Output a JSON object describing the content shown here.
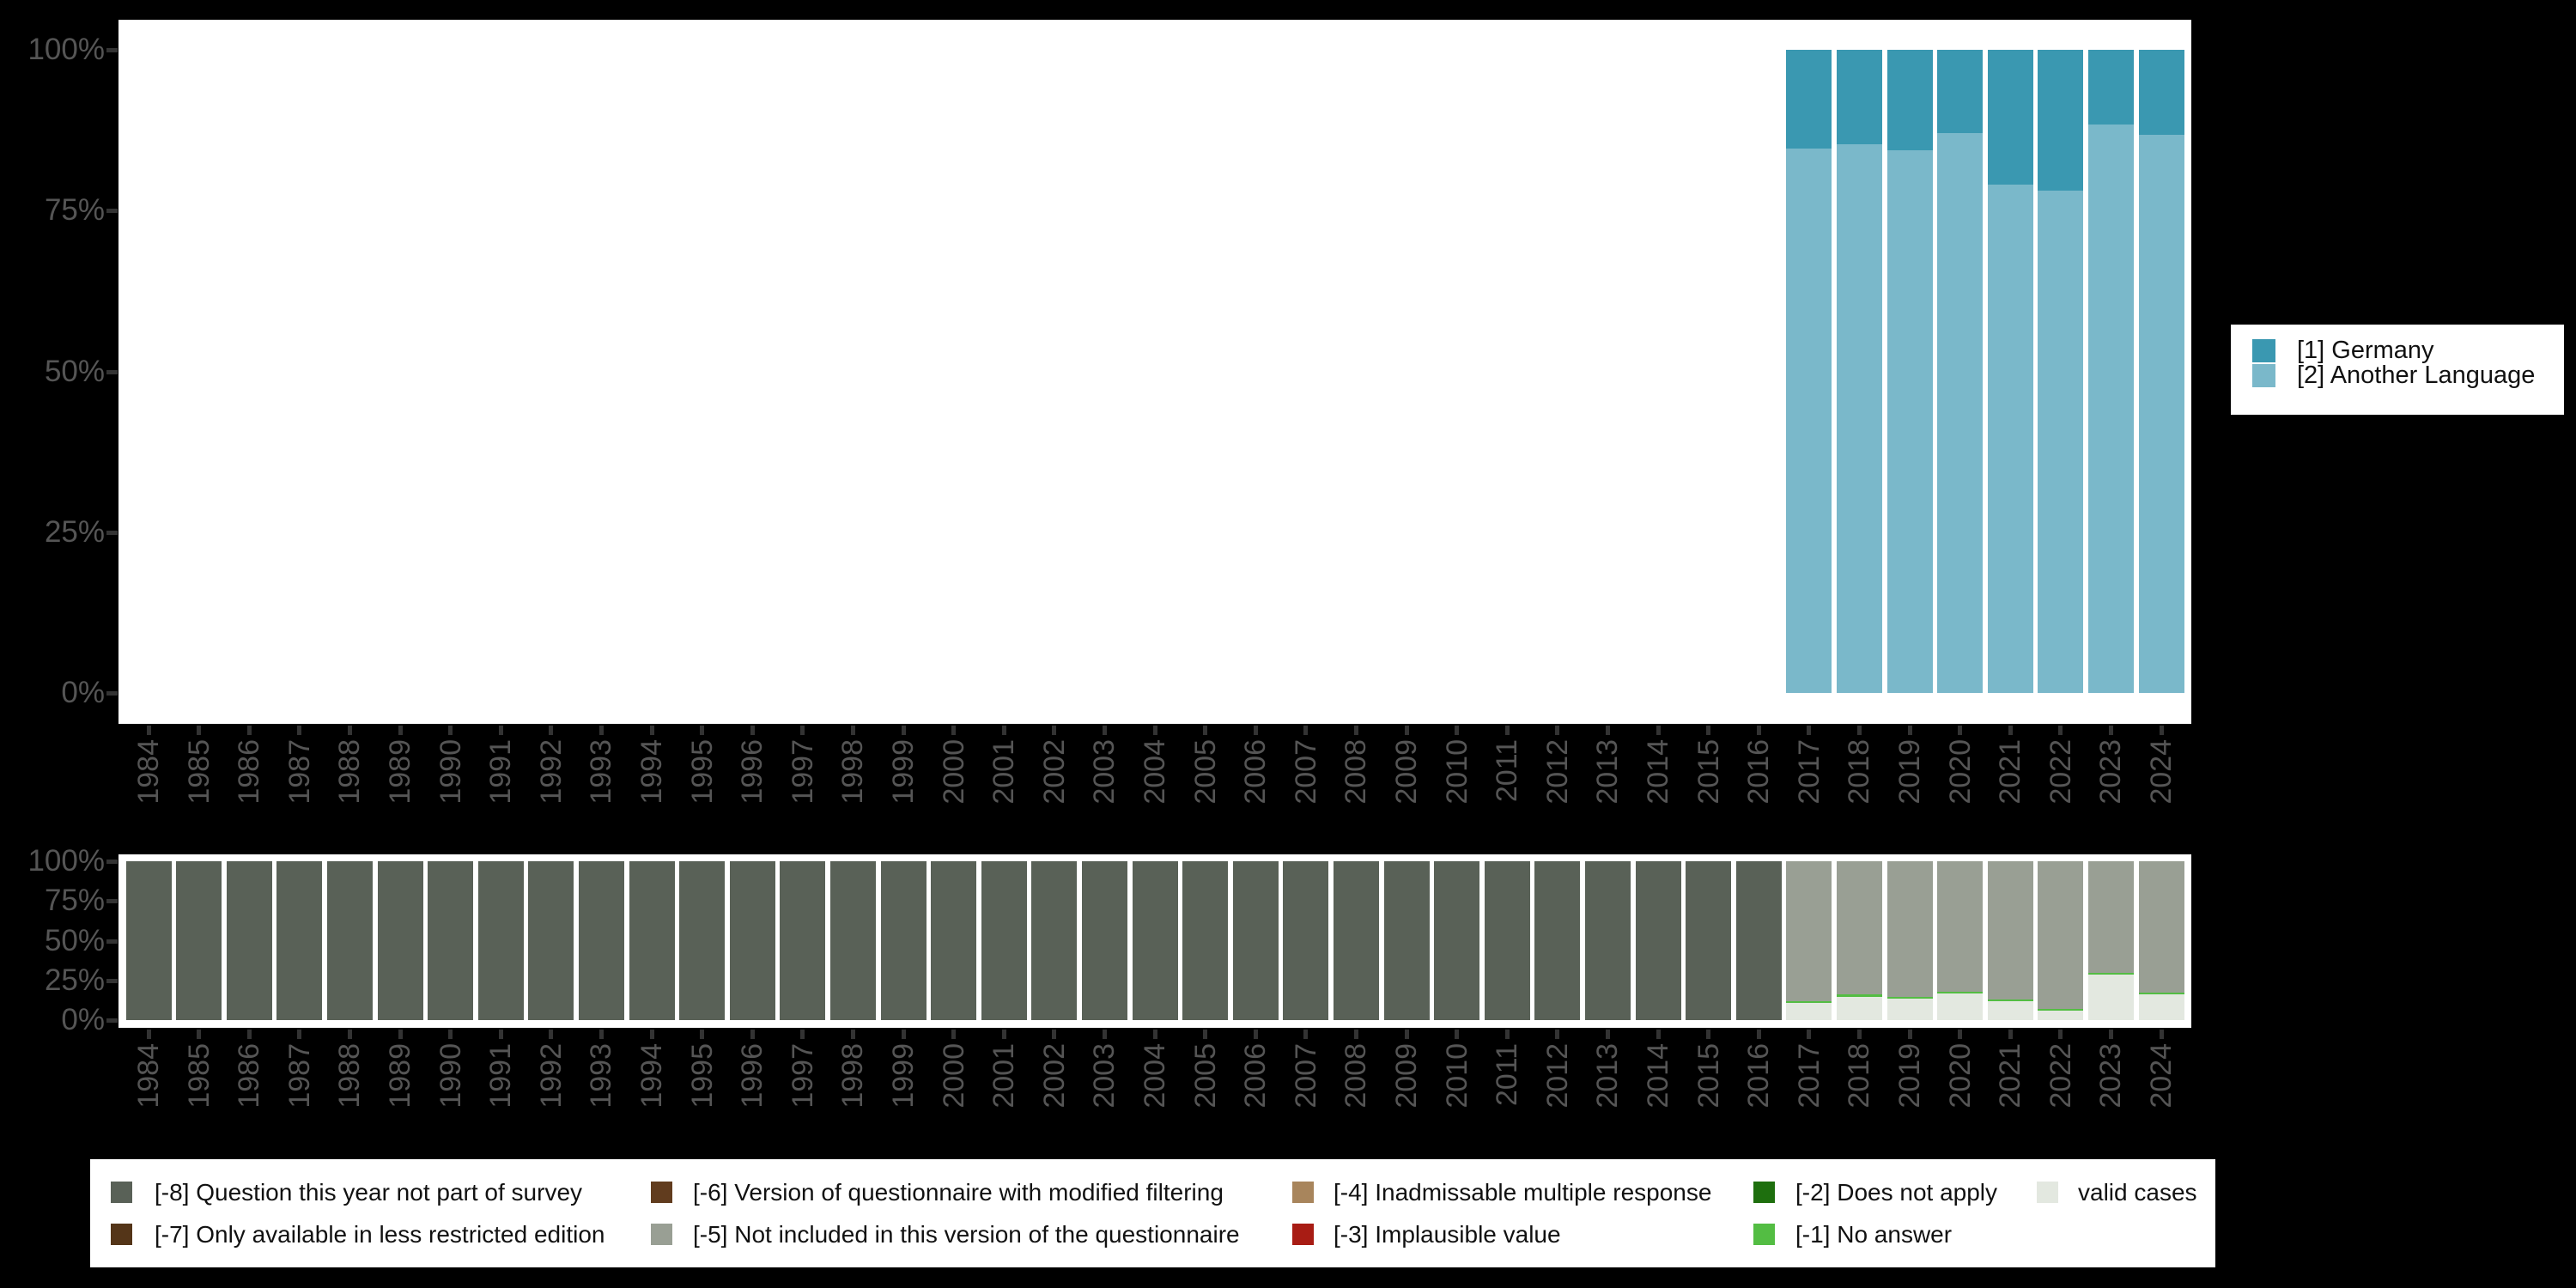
{
  "app": {
    "background": "#000000",
    "panel_background": "#ffffff"
  },
  "colors": {
    "axis_text": "#555555",
    "tick": "#333333",
    "legend_text": "#111111",
    "germany": "#3a98b1",
    "another_language": "#7ab8ca",
    "m8": "#596157",
    "m7": "#543518",
    "m6": "#613c1e",
    "m5": "#999f94",
    "m4": "#a8855c",
    "m3": "#a81c14",
    "m2": "#1e6f0e",
    "m1": "#53bd43",
    "valid": "#e3e8e0"
  },
  "axis": {
    "y_tick_labels": [
      "100%",
      "75%",
      "50%",
      "25%",
      "0%"
    ],
    "years": [
      "1984",
      "1985",
      "1986",
      "1987",
      "1988",
      "1989",
      "1990",
      "1991",
      "1992",
      "1993",
      "1994",
      "1995",
      "1996",
      "1997",
      "1998",
      "1999",
      "2000",
      "2001",
      "2002",
      "2003",
      "2004",
      "2005",
      "2006",
      "2007",
      "2008",
      "2009",
      "2010",
      "2011",
      "2012",
      "2013",
      "2014",
      "2015",
      "2016",
      "2017",
      "2018",
      "2019",
      "2020",
      "2021",
      "2022",
      "2023",
      "2024"
    ]
  },
  "legend_language": {
    "items": [
      {
        "key": "germany",
        "label": "[1] Germany"
      },
      {
        "key": "another_language",
        "label": "[2] Another Language"
      }
    ]
  },
  "legend_missing": {
    "items": [
      {
        "key": "m8",
        "label": "[-8] Question this year not part of survey",
        "row": 1,
        "col": 1
      },
      {
        "key": "m7",
        "label": "[-7] Only available in less restricted edition",
        "row": 2,
        "col": 1
      },
      {
        "key": "m6",
        "label": "[-6] Version of questionnaire with modified filtering",
        "row": 1,
        "col": 2
      },
      {
        "key": "m5",
        "label": "[-5] Not included in this version of the questionnaire",
        "row": 2,
        "col": 2
      },
      {
        "key": "m4",
        "label": "[-4] Inadmissable multiple response",
        "row": 1,
        "col": 3
      },
      {
        "key": "m3",
        "label": "[-3] Implausible value",
        "row": 2,
        "col": 3
      },
      {
        "key": "m2",
        "label": "[-2] Does not apply",
        "row": 1,
        "col": 4
      },
      {
        "key": "m1",
        "label": "[-1] No answer",
        "row": 2,
        "col": 4
      },
      {
        "key": "valid",
        "label": "valid cases",
        "row": 1,
        "col": 5
      }
    ]
  },
  "chart_data": [
    {
      "id": "language-distribution",
      "type": "bar",
      "stacked": true,
      "unit": "percent",
      "ylim": [
        0,
        100
      ],
      "y_ticks": [
        "0%",
        "25%",
        "50%",
        "75%",
        "100%"
      ],
      "legend_position": "right",
      "x_years": [
        "2017",
        "2018",
        "2019",
        "2020",
        "2021",
        "2022",
        "2023",
        "2024"
      ],
      "series": [
        {
          "name": "[1] Germany",
          "key": "germany",
          "values": [
            15.4,
            14.7,
            15.6,
            13.0,
            21.0,
            21.9,
            11.6,
            13.2
          ]
        },
        {
          "name": "[2] Another Language",
          "key": "another_language",
          "values": [
            84.6,
            85.3,
            84.4,
            87.0,
            79.0,
            78.1,
            88.4,
            86.8
          ]
        }
      ]
    },
    {
      "id": "missing-values",
      "type": "bar",
      "stacked": true,
      "unit": "percent",
      "ylim": [
        0,
        100
      ],
      "y_ticks": [
        "0%",
        "25%",
        "50%",
        "75%",
        "100%"
      ],
      "legend_position": "bottom",
      "x_years": [
        "1984",
        "1985",
        "1986",
        "1987",
        "1988",
        "1989",
        "1990",
        "1991",
        "1992",
        "1993",
        "1994",
        "1995",
        "1996",
        "1997",
        "1998",
        "1999",
        "2000",
        "2001",
        "2002",
        "2003",
        "2004",
        "2005",
        "2006",
        "2007",
        "2008",
        "2009",
        "2010",
        "2011",
        "2012",
        "2013",
        "2014",
        "2015",
        "2016",
        "2017",
        "2018",
        "2019",
        "2020",
        "2021",
        "2022",
        "2023",
        "2024"
      ],
      "series": [
        {
          "name": "[-8] Question this year not part of survey",
          "key": "m8",
          "values": [
            100,
            100,
            100,
            100,
            100,
            100,
            100,
            100,
            100,
            100,
            100,
            100,
            100,
            100,
            100,
            100,
            100,
            100,
            100,
            100,
            100,
            100,
            100,
            100,
            100,
            100,
            100,
            100,
            100,
            100,
            100,
            100,
            100,
            0,
            0,
            0,
            0,
            0,
            0,
            0,
            0
          ]
        },
        {
          "name": "[-5] Not included in this version of the questionnaire",
          "key": "m5",
          "values": [
            0,
            0,
            0,
            0,
            0,
            0,
            0,
            0,
            0,
            0,
            0,
            0,
            0,
            0,
            0,
            0,
            0,
            0,
            0,
            0,
            0,
            0,
            0,
            0,
            0,
            0,
            0,
            0,
            0,
            0,
            0,
            0,
            0,
            88.2,
            84.0,
            85.5,
            82.2,
            86.9,
            92.9,
            70.3,
            82.5
          ]
        },
        {
          "name": "[-1] No answer",
          "key": "m1",
          "values": [
            0,
            0,
            0,
            0,
            0,
            0,
            0,
            0,
            0,
            0,
            0,
            0,
            0,
            0,
            0,
            0,
            0,
            0,
            0,
            0,
            0,
            0,
            0,
            0,
            0,
            0,
            0,
            0,
            0,
            0,
            0,
            0,
            0,
            1.1,
            1.5,
            1.1,
            1.2,
            1.1,
            1.2,
            1.2,
            1.1
          ]
        },
        {
          "name": "valid cases",
          "key": "valid",
          "values": [
            0,
            0,
            0,
            0,
            0,
            0,
            0,
            0,
            0,
            0,
            0,
            0,
            0,
            0,
            0,
            0,
            0,
            0,
            0,
            0,
            0,
            0,
            0,
            0,
            0,
            0,
            0,
            0,
            0,
            0,
            0,
            0,
            0,
            10.7,
            14.5,
            13.4,
            16.6,
            12.0,
            5.9,
            28.5,
            16.4
          ]
        }
      ]
    }
  ]
}
